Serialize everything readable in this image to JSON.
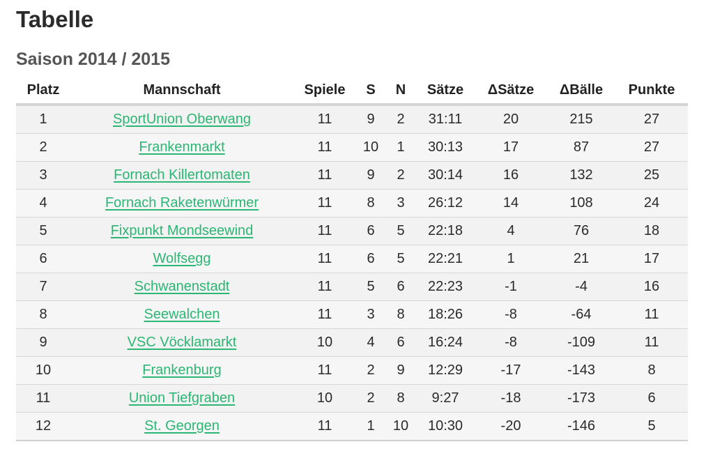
{
  "page": {
    "title": "Tabelle",
    "season": "Saison 2014 / 2015"
  },
  "colors": {
    "link": "#2bb673",
    "row_odd": "#f2f2f2",
    "row_even": "#f7f6f7",
    "header_rule": "#d4d4d4"
  },
  "table": {
    "headers": [
      "Platz",
      "Mannschaft",
      "Spiele",
      "S",
      "N",
      "Sätze",
      "ΔSätze",
      "ΔBälle",
      "Punkte"
    ],
    "rows": [
      {
        "platz": "1",
        "team": "SportUnion Oberwang",
        "spiele": "11",
        "s": "9",
        "n": "2",
        "saetze": "31:11",
        "d_saetze": "20",
        "d_baelle": "215",
        "punkte": "27"
      },
      {
        "platz": "2",
        "team": "Frankenmarkt",
        "spiele": "11",
        "s": "10",
        "n": "1",
        "saetze": "30:13",
        "d_saetze": "17",
        "d_baelle": "87",
        "punkte": "27"
      },
      {
        "platz": "3",
        "team": "Fornach Killertomaten",
        "spiele": "11",
        "s": "9",
        "n": "2",
        "saetze": "30:14",
        "d_saetze": "16",
        "d_baelle": "132",
        "punkte": "25"
      },
      {
        "platz": "4",
        "team": "Fornach Raketenwürmer",
        "spiele": "11",
        "s": "8",
        "n": "3",
        "saetze": "26:12",
        "d_saetze": "14",
        "d_baelle": "108",
        "punkte": "24"
      },
      {
        "platz": "5",
        "team": "Fixpunkt Mondseewind",
        "spiele": "11",
        "s": "6",
        "n": "5",
        "saetze": "22:18",
        "d_saetze": "4",
        "d_baelle": "76",
        "punkte": "18"
      },
      {
        "platz": "6",
        "team": "Wolfsegg",
        "spiele": "11",
        "s": "6",
        "n": "5",
        "saetze": "22:21",
        "d_saetze": "1",
        "d_baelle": "21",
        "punkte": "17"
      },
      {
        "platz": "7",
        "team": "Schwanenstadt",
        "spiele": "11",
        "s": "5",
        "n": "6",
        "saetze": "22:23",
        "d_saetze": "-1",
        "d_baelle": "-4",
        "punkte": "16"
      },
      {
        "platz": "8",
        "team": "Seewalchen",
        "spiele": "11",
        "s": "3",
        "n": "8",
        "saetze": "18:26",
        "d_saetze": "-8",
        "d_baelle": "-64",
        "punkte": "11"
      },
      {
        "platz": "9",
        "team": "VSC Vöcklamarkt",
        "spiele": "10",
        "s": "4",
        "n": "6",
        "saetze": "16:24",
        "d_saetze": "-8",
        "d_baelle": "-109",
        "punkte": "11"
      },
      {
        "platz": "10",
        "team": "Frankenburg",
        "spiele": "11",
        "s": "2",
        "n": "9",
        "saetze": "12:29",
        "d_saetze": "-17",
        "d_baelle": "-143",
        "punkte": "8"
      },
      {
        "platz": "11",
        "team": "Union Tiefgraben",
        "spiele": "10",
        "s": "2",
        "n": "8",
        "saetze": "9:27",
        "d_saetze": "-18",
        "d_baelle": "-173",
        "punkte": "6"
      },
      {
        "platz": "12",
        "team": "St. Georgen",
        "spiele": "11",
        "s": "1",
        "n": "10",
        "saetze": "10:30",
        "d_saetze": "-20",
        "d_baelle": "-146",
        "punkte": "5"
      }
    ]
  }
}
